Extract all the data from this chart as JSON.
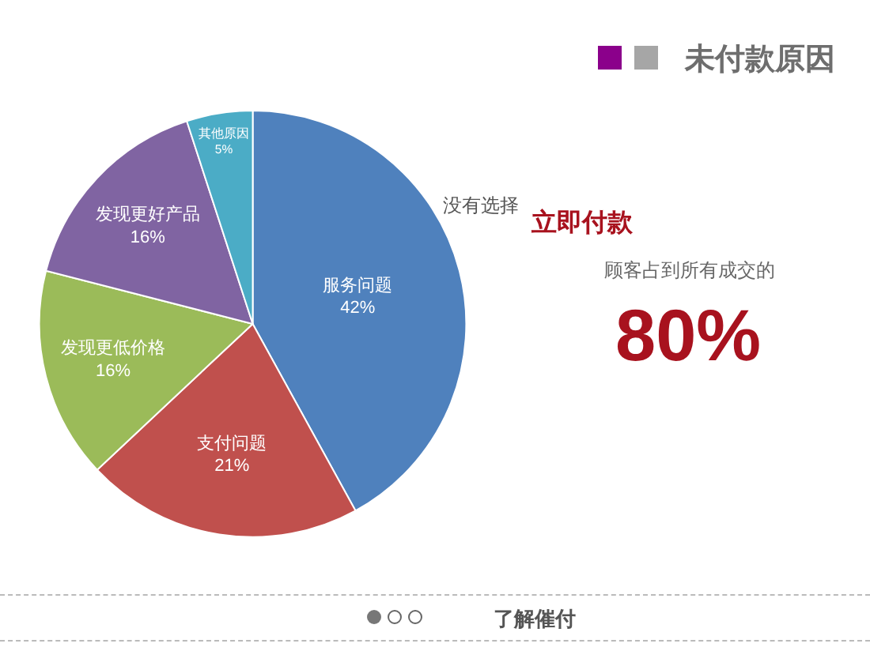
{
  "chart_data": {
    "type": "pie",
    "title": "未付款原因",
    "categories": [
      "服务问题",
      "支付问题",
      "发现更低价格",
      "发现更好产品",
      "其他原因"
    ],
    "values": [
      42,
      21,
      16,
      16,
      5
    ],
    "value_labels": [
      "42%",
      "21%",
      "16%",
      "16%",
      "5%"
    ],
    "colors": [
      "#4f81bd",
      "#c0504d",
      "#9bbb59",
      "#8064a2",
      "#4bacc6"
    ],
    "annotations": [
      "没有选择",
      "立即付款",
      "顾客占到所有成交的",
      "80%",
      "了解催付"
    ],
    "legend": false
  }
}
